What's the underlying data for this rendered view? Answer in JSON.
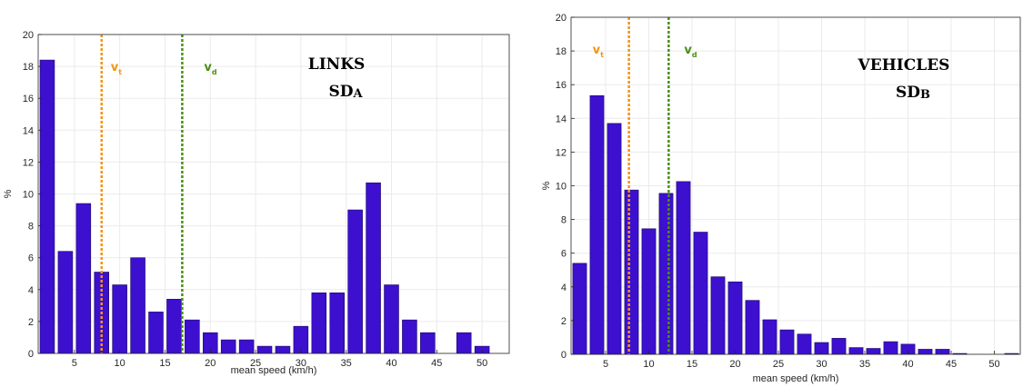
{
  "chart_data": [
    {
      "type": "bar",
      "title_line1": "LINKS",
      "title_line2": "SD",
      "title_sub": "A",
      "xlabel": "mean speed (km/h)",
      "ylabel": "%",
      "xlim": [
        1,
        53
      ],
      "ylim": [
        0,
        20
      ],
      "xticks": [
        5,
        10,
        15,
        20,
        25,
        30,
        35,
        40,
        45,
        50
      ],
      "yticks": [
        0,
        2,
        4,
        6,
        8,
        10,
        12,
        14,
        16,
        18,
        20
      ],
      "grid": true,
      "bar_color": "#3d0fcf",
      "x": [
        2,
        4,
        6,
        8,
        10,
        12,
        14,
        16,
        18,
        20,
        22,
        24,
        26,
        28,
        30,
        32,
        34,
        36,
        38,
        40,
        42,
        44,
        46,
        48,
        50
      ],
      "values": [
        18.4,
        6.4,
        9.4,
        5.1,
        4.3,
        6.0,
        2.6,
        3.4,
        2.1,
        1.3,
        0.85,
        0.85,
        0.45,
        0.45,
        1.7,
        3.8,
        3.8,
        9.0,
        10.7,
        4.3,
        2.1,
        1.3,
        0,
        1.3,
        0.45
      ],
      "vlines": [
        {
          "symbol": "v",
          "sub": "t",
          "x": 8.0,
          "color": "#f39416"
        },
        {
          "symbol": "v",
          "sub": "d",
          "x": 16.9,
          "color": "#4a8f13"
        }
      ]
    },
    {
      "type": "bar",
      "title_line1": "VEHICLES",
      "title_line2": "SD",
      "title_sub": "B",
      "xlabel": "mean speed (km/h)",
      "ylabel": "%",
      "xlim": [
        1,
        53
      ],
      "ylim": [
        0,
        20
      ],
      "xticks": [
        5,
        10,
        15,
        20,
        25,
        30,
        35,
        40,
        45,
        50
      ],
      "yticks": [
        0,
        2,
        4,
        6,
        8,
        10,
        12,
        14,
        16,
        18,
        20
      ],
      "grid": true,
      "bar_color": "#3d0fcf",
      "x": [
        2,
        4,
        6,
        8,
        10,
        12,
        14,
        16,
        18,
        20,
        22,
        24,
        26,
        28,
        30,
        32,
        34,
        36,
        38,
        40,
        42,
        44,
        46,
        48,
        50,
        52
      ],
      "values": [
        5.4,
        15.35,
        13.7,
        9.75,
        7.45,
        9.55,
        10.25,
        7.25,
        4.6,
        4.3,
        3.2,
        2.05,
        1.45,
        1.2,
        0.7,
        0.95,
        0.4,
        0.35,
        0.75,
        0.6,
        0.3,
        0.3,
        0.05,
        0,
        0,
        0.05
      ],
      "vlines": [
        {
          "symbol": "v",
          "sub": "t",
          "x": 7.7,
          "color": "#f39416"
        },
        {
          "symbol": "v",
          "sub": "d",
          "x": 12.3,
          "color": "#4a8f13"
        }
      ]
    }
  ]
}
